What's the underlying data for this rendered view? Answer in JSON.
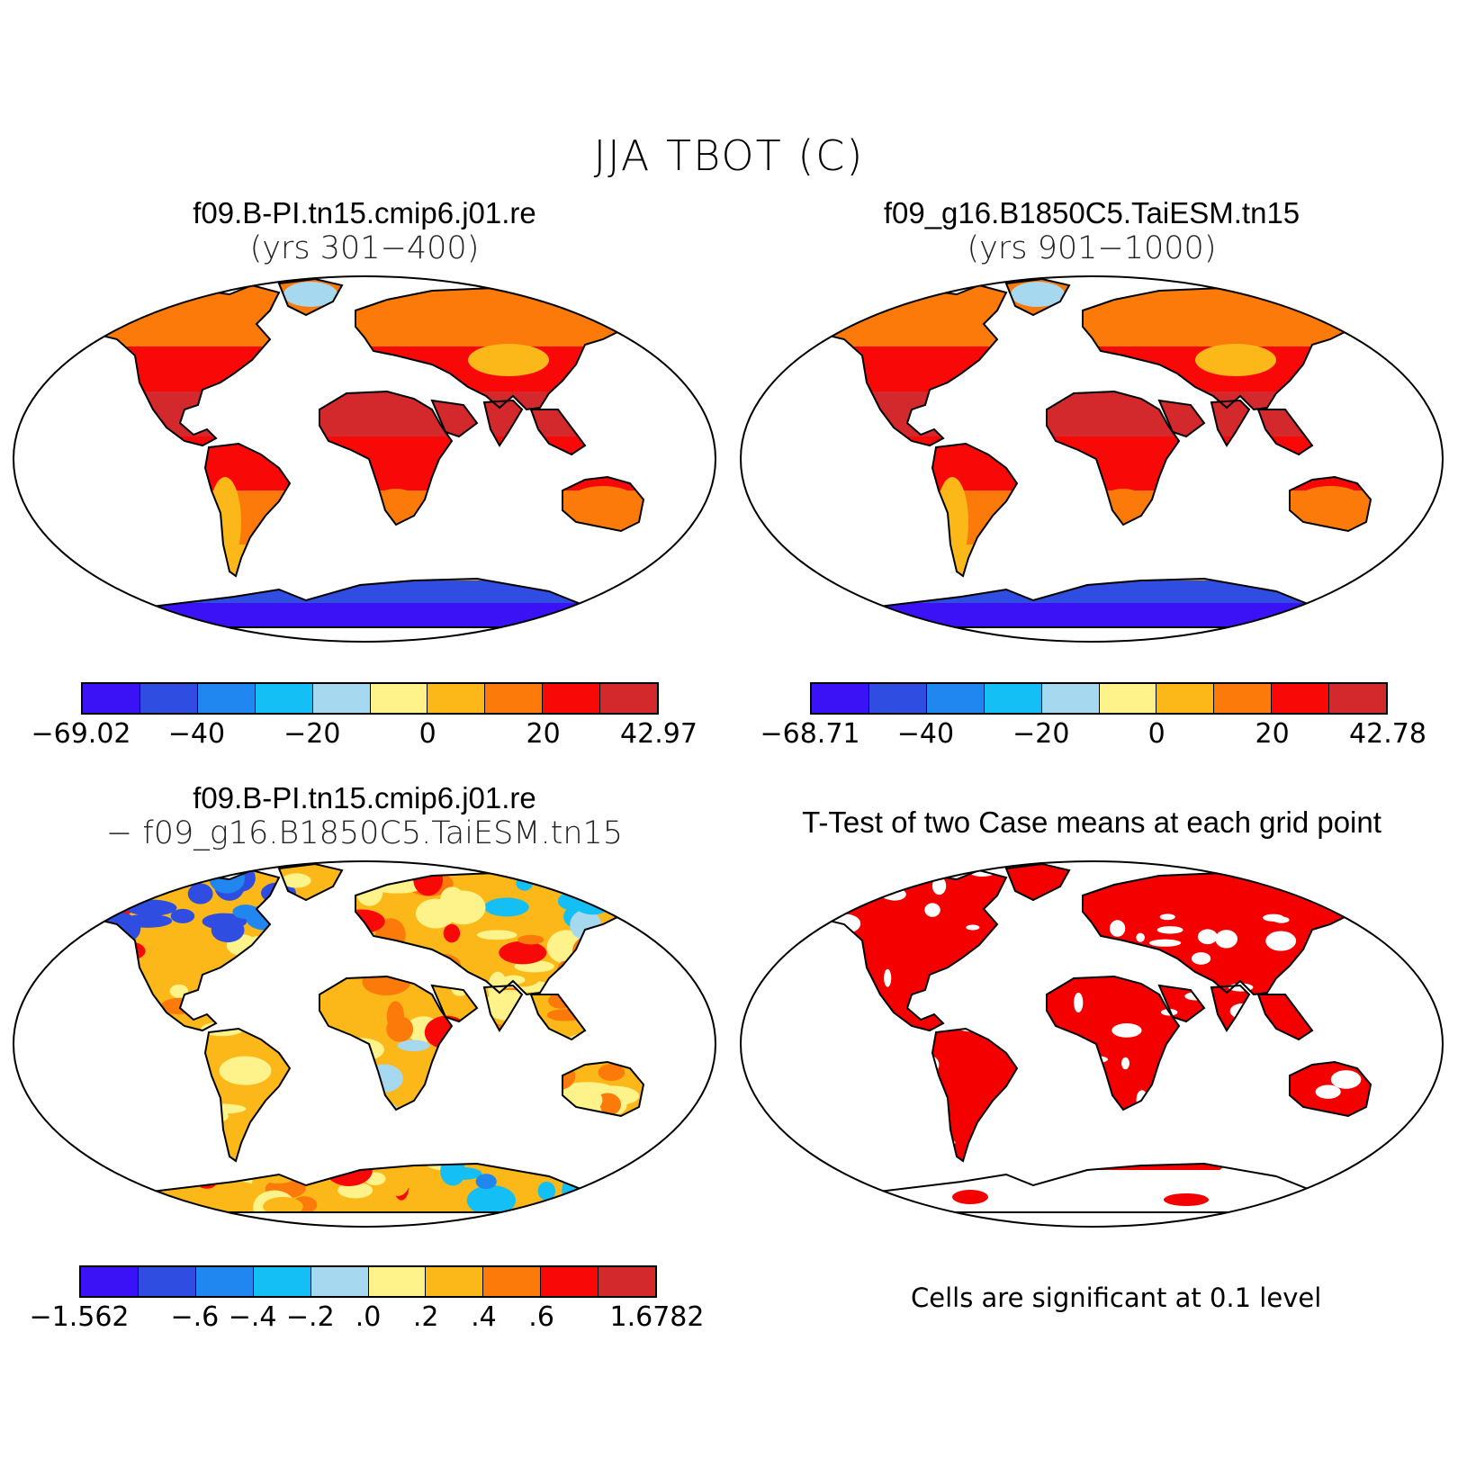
{
  "title": "JJA TBOT (C)",
  "panels": [
    {
      "title": "f09.B-PI.tn15.cmip6.j01.re",
      "subtitle": "(yrs 301−400)",
      "kind": "abs"
    },
    {
      "title": "f09_g16.B1850C5.TaiESM.tn15",
      "subtitle": "(yrs 901−1000)",
      "kind": "abs"
    },
    {
      "title": "f09.B-PI.tn15.cmip6.j01.re",
      "subtitle": "− f09_g16.B1850C5.TaiESM.tn15",
      "kind": "diff"
    },
    {
      "title": "T-Test of two Case means at each grid point",
      "subtitle": "",
      "kind": "ttest"
    }
  ],
  "colorbars": [
    {
      "colors": [
        "#3a12f5",
        "#2f4de0",
        "#2187f0",
        "#14bff5",
        "#a6d8f0",
        "#fdf38a",
        "#fbb818",
        "#fb7a0a",
        "#f90808",
        "#d3292c"
      ],
      "ticks": [
        "−69.02",
        "−40",
        "−20",
        "0",
        "20",
        "42.97"
      ],
      "tick_positions": [
        0,
        0.2,
        0.4,
        0.6,
        0.8,
        1.0
      ]
    },
    {
      "colors": [
        "#3a12f5",
        "#2f4de0",
        "#2187f0",
        "#14bff5",
        "#a6d8f0",
        "#fdf38a",
        "#fbb818",
        "#fb7a0a",
        "#f90808",
        "#d3292c"
      ],
      "ticks": [
        "−68.71",
        "−40",
        "−20",
        "0",
        "20",
        "42.78"
      ],
      "tick_positions": [
        0,
        0.2,
        0.4,
        0.6,
        0.8,
        1.0
      ]
    },
    {
      "colors": [
        "#3a12f5",
        "#2f4de0",
        "#2187f0",
        "#14bff5",
        "#a6d8f0",
        "#fdf38a",
        "#fbb818",
        "#fb7a0a",
        "#f90808",
        "#d3292c"
      ],
      "ticks": [
        "−1.562",
        "−.6",
        "−.4",
        "−.2",
        ".0",
        ".2",
        ".4",
        ".6",
        "1.6782"
      ],
      "tick_positions": [
        0,
        0.2,
        0.3,
        0.4,
        0.5,
        0.6,
        0.7,
        0.8,
        1.0
      ]
    }
  ],
  "significance_note": "Cells are significant at 0.1 level",
  "colors": {
    "significant": "#f40000",
    "land_outline": "#000000"
  }
}
